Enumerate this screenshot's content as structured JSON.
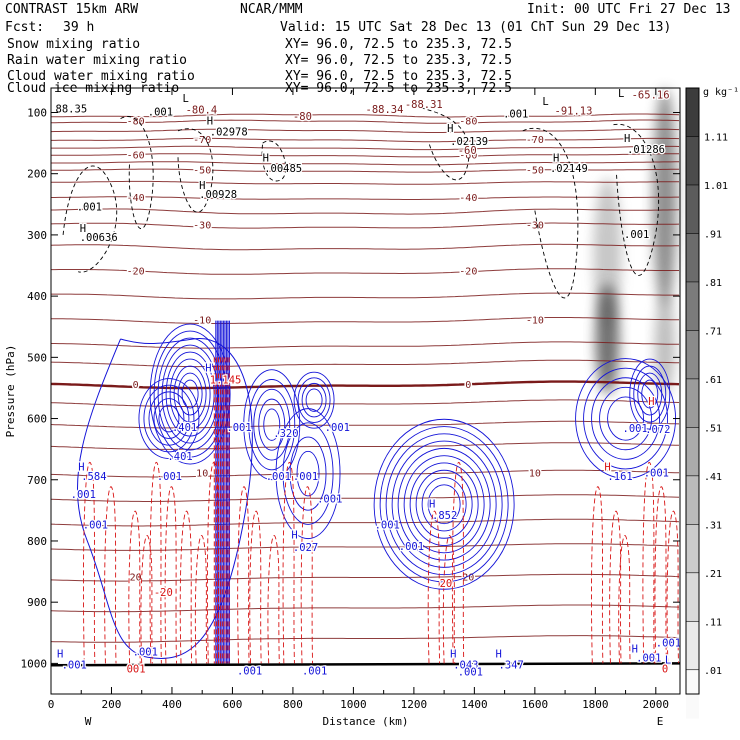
{
  "header": {
    "model": "CONTRAST 15km ARW",
    "center": "NCAR/MMM",
    "init": "Init: 00 UTC Fri 27 Dec 13",
    "fcst_label": "Fcst:",
    "fcst_value": "39 h",
    "valid": "Valid: 15 UTC Sat 28 Dec 13 (01 ChT Sun 29 Dec 13)"
  },
  "fields": [
    {
      "name": "Snow mixing ratio",
      "xy": "XY=  96.0, 72.5 to 235.3, 72.5",
      "color": "#000000"
    },
    {
      "name": "Rain water mixing ratio",
      "xy": "XY=  96.0, 72.5 to 235.3, 72.5",
      "color": "#e01010"
    },
    {
      "name": "Cloud water mixing ratio",
      "xy": "XY=  96.0, 72.5 to 235.3, 72.5",
      "color": "#1010e0"
    },
    {
      "name": "Cloud ice mixing ratio",
      "xy": "XY=  96.0, 72.5 to 235.3, 72.5",
      "color": "#000000"
    }
  ],
  "colorbar": {
    "unit": "g kg⁻¹",
    "labels": [
      "1.11",
      "1.01",
      ".91",
      ".81",
      ".71",
      ".61",
      ".51",
      ".41",
      ".31",
      ".21",
      ".11",
      ".01"
    ]
  },
  "chart_data": {
    "type": "contour",
    "xlabel": "Distance (km)",
    "ylabel": "Pressure (hPa)",
    "xlim": [
      0,
      2080
    ],
    "ylim": [
      1050,
      60
    ],
    "xticks": [
      0,
      200,
      400,
      600,
      800,
      1000,
      1200,
      1400,
      1600,
      1800,
      2000
    ],
    "yticks": [
      100,
      200,
      300,
      400,
      500,
      600,
      700,
      800,
      900,
      1000
    ],
    "x_end_labels": {
      "left": "W",
      "right": "E"
    },
    "temperature_contours": [
      {
        "label": "-80",
        "p": 115
      },
      {
        "label": "-70",
        "p": 145
      },
      {
        "label": "-60",
        "p": 170
      },
      {
        "label": "-50",
        "p": 195
      },
      {
        "label": "-40",
        "p": 240
      },
      {
        "label": "-30",
        "p": 285
      },
      {
        "label": "-20",
        "p": 360
      },
      {
        "label": "-10",
        "p": 440
      },
      {
        "label": "0",
        "p": 545
      },
      {
        "label": "10",
        "p": 690
      },
      {
        "label": "20",
        "p": 860
      }
    ],
    "annotations": [
      {
        "text": "L",
        "x": 435,
        "p": 83
      },
      {
        "text": "88.35",
        "x": 15,
        "p": 100
      },
      {
        "text": ".001",
        "x": 320,
        "p": 105
      },
      {
        "text": "-80.4",
        "x": 445,
        "p": 102
      },
      {
        "text": "-80",
        "x": 800,
        "p": 112
      },
      {
        "text": "-88.34",
        "x": 1040,
        "p": 101
      },
      {
        "text": "-88.31",
        "x": 1170,
        "p": 93
      },
      {
        "text": ".001",
        "x": 1495,
        "p": 108
      },
      {
        "text": "L",
        "x": 1625,
        "p": 88
      },
      {
        "text": "-91.13",
        "x": 1665,
        "p": 103
      },
      {
        "text": "L",
        "x": 1875,
        "p": 75
      },
      {
        "text": "-65.16",
        "x": 1920,
        "p": 77
      },
      {
        "text": "H",
        "x": 515,
        "p": 120
      },
      {
        "text": ".02978",
        "x": 525,
        "p": 138
      },
      {
        "text": "H",
        "x": 1310,
        "p": 132
      },
      {
        "text": ".02139",
        "x": 1320,
        "p": 153
      },
      {
        "text": "-60",
        "x": 1345,
        "p": 168
      },
      {
        "text": "H",
        "x": 1895,
        "p": 148
      },
      {
        "text": ".01286",
        "x": 1905,
        "p": 166
      },
      {
        "text": "H",
        "x": 700,
        "p": 180
      },
      {
        "text": ".00485",
        "x": 705,
        "p": 197
      },
      {
        "text": "H",
        "x": 1660,
        "p": 180
      },
      {
        "text": ".02149",
        "x": 1650,
        "p": 197
      },
      {
        "text": "H",
        "x": 490,
        "p": 225
      },
      {
        "text": ".00928",
        "x": 490,
        "p": 240
      },
      {
        "text": ".001",
        "x": 85,
        "p": 260
      },
      {
        "text": "H",
        "x": 95,
        "p": 295
      },
      {
        "text": ".00636",
        "x": 95,
        "p": 310
      },
      {
        "text": ".001",
        "x": 1895,
        "p": 305
      },
      {
        "text": "H",
        "x": 510,
        "p": 523
      },
      {
        "text": "1.145",
        "x": 525,
        "p": 543
      },
      {
        "text": ".401",
        "x": 400,
        "p": 620
      },
      {
        "text": ".401",
        "x": 385,
        "p": 668
      },
      {
        "text": ".001",
        "x": 580,
        "p": 620
      },
      {
        "text": ".320",
        "x": 735,
        "p": 630
      },
      {
        "text": ".001",
        "x": 905,
        "p": 620
      },
      {
        "text": ".001",
        "x": 710,
        "p": 700
      },
      {
        "text": ".001",
        "x": 800,
        "p": 700
      },
      {
        "text": ".001",
        "x": 880,
        "p": 737
      },
      {
        "text": ".001",
        "x": 350,
        "p": 700
      },
      {
        "text": "H",
        "x": 90,
        "p": 685
      },
      {
        "text": ".584",
        "x": 100,
        "p": 700
      },
      {
        "text": ".001",
        "x": 65,
        "p": 730
      },
      {
        "text": ".001",
        "x": 105,
        "p": 780
      },
      {
        "text": "H",
        "x": 1250,
        "p": 745
      },
      {
        "text": ".852",
        "x": 1260,
        "p": 764
      },
      {
        "text": ".001",
        "x": 1070,
        "p": 780
      },
      {
        "text": ".001",
        "x": 1150,
        "p": 815
      },
      {
        "text": "H",
        "x": 795,
        "p": 796
      },
      {
        "text": ".027",
        "x": 800,
        "p": 816
      },
      {
        "text": "H",
        "x": 1830,
        "p": 685
      },
      {
        "text": ".161",
        "x": 1840,
        "p": 700
      },
      {
        "text": ".001",
        "x": 1960,
        "p": 695
      },
      {
        "text": ".001",
        "x": 1890,
        "p": 622
      },
      {
        "text": ".072",
        "x": 1965,
        "p": 624
      },
      {
        "text": "H",
        "x": 1975,
        "p": 578
      },
      {
        "text": "H",
        "x": 20,
        "p": 990
      },
      {
        "text": ".001",
        "x": 35,
        "p": 1008
      },
      {
        "text": ".001",
        "x": 270,
        "p": 987
      },
      {
        "text": "001",
        "x": 250,
        "p": 1015
      },
      {
        "text": ".001",
        "x": 615,
        "p": 1018
      },
      {
        "text": ".001",
        "x": 830,
        "p": 1018
      },
      {
        "text": "H",
        "x": 1320,
        "p": 990
      },
      {
        "text": ".043",
        "x": 1330,
        "p": 1008
      },
      {
        "text": ".001",
        "x": 1345,
        "p": 1020
      },
      {
        "text": "H",
        "x": 1470,
        "p": 990
      },
      {
        "text": ".347",
        "x": 1480,
        "p": 1008
      },
      {
        "text": "H",
        "x": 1920,
        "p": 982
      },
      {
        "text": ".001",
        "x": 1935,
        "p": 997
      },
      {
        "text": ".001",
        "x": 2000,
        "p": 972
      },
      {
        "text": "L",
        "x": 2030,
        "p": 1000
      },
      {
        "text": "0",
        "x": 2020,
        "p": 1015
      },
      {
        "text": "-20",
        "x": 340,
        "p": 890
      },
      {
        "text": "20",
        "x": 1285,
        "p": 875
      }
    ]
  }
}
